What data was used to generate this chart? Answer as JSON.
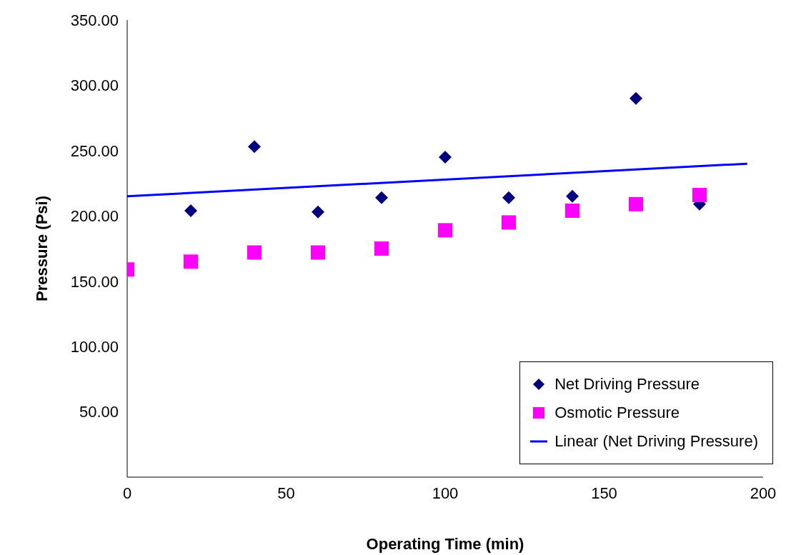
{
  "chart_data": {
    "type": "scatter",
    "xlabel": "Operating Time (min)",
    "ylabel": "Pressure (Psi)",
    "xlim": [
      0,
      200
    ],
    "xticks": [
      0,
      50,
      100,
      150,
      200
    ],
    "ylim": [
      0,
      350
    ],
    "yticks": [
      {
        "value": 0,
        "label": null
      },
      {
        "value": 50,
        "label": "50.00"
      },
      {
        "value": 100,
        "label": "100.00"
      },
      {
        "value": 150,
        "label": "150.00"
      },
      {
        "value": 200,
        "label": "200.00"
      },
      {
        "value": 250,
        "label": "250.00"
      },
      {
        "value": 300,
        "label": "300.00"
      },
      {
        "value": 350,
        "label": "350.00"
      }
    ],
    "grid": false,
    "legend": "bottom right",
    "series": [
      {
        "name": "Net Driving Pressure",
        "marker": "diamond",
        "color": "#000080",
        "x": [
          20,
          40,
          60,
          80,
          100,
          120,
          140,
          160,
          180
        ],
        "values": [
          204,
          253,
          203,
          214,
          245,
          214,
          215,
          290,
          209
        ]
      },
      {
        "name": "Osmotic Pressure",
        "marker": "square",
        "color": "#ff00ff",
        "x": [
          0,
          20,
          40,
          60,
          80,
          100,
          120,
          140,
          160,
          180
        ],
        "values": [
          159,
          165,
          172,
          172,
          175,
          189,
          195,
          204,
          209,
          216
        ]
      },
      {
        "name": "Linear (Net Driving Pressure)",
        "type": "line",
        "marker": "none",
        "color": "#0000ff",
        "x": [
          0,
          195
        ],
        "values": [
          215,
          240
        ]
      }
    ]
  }
}
